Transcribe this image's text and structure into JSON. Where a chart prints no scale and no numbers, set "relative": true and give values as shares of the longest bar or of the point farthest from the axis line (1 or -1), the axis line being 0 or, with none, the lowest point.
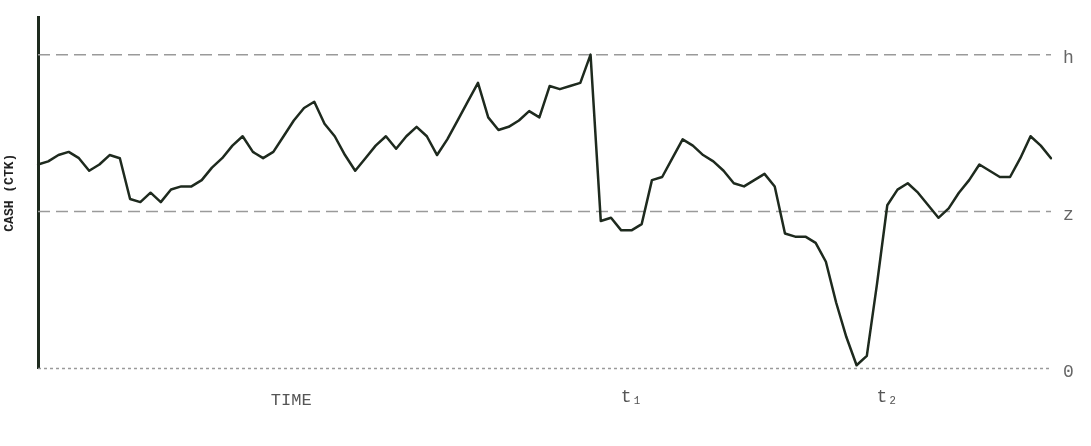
{
  "chart_data": {
    "type": "line",
    "relative": true,
    "xlabel": "TIME",
    "ylabel": "CASH (CTK)",
    "categories": [
      null,
      null,
      null,
      null,
      null,
      null,
      null,
      null,
      null,
      null,
      null,
      null,
      null,
      null,
      null,
      null,
      null,
      null,
      null,
      null,
      null,
      null,
      null,
      null,
      null,
      null,
      null,
      null,
      null,
      null,
      null,
      null,
      null,
      null,
      null,
      null,
      null,
      null,
      null,
      null,
      null,
      null,
      null,
      null,
      null,
      null,
      null,
      null,
      null,
      null,
      null,
      null,
      null,
      null,
      null,
      null,
      null,
      null,
      "t₁",
      null,
      null,
      null,
      null,
      null,
      null,
      null,
      null,
      null,
      null,
      null,
      null,
      null,
      null,
      null,
      null,
      null,
      null,
      null,
      null,
      null,
      null,
      null,
      null,
      "t₂",
      null,
      null,
      null,
      null,
      null,
      null,
      null,
      null,
      null,
      null,
      null,
      null,
      null,
      null,
      null,
      null
    ],
    "series": [
      {
        "color": "#1e2a1e",
        "values": [
          0.65,
          0.66,
          0.68,
          0.69,
          0.67,
          0.63,
          0.65,
          0.68,
          0.67,
          0.54,
          0.53,
          0.56,
          0.53,
          0.57,
          0.58,
          0.58,
          0.6,
          0.64,
          0.67,
          0.71,
          0.74,
          0.69,
          0.67,
          0.69,
          0.74,
          0.79,
          0.83,
          0.85,
          0.78,
          0.74,
          0.68,
          0.63,
          0.67,
          0.71,
          0.74,
          0.7,
          0.74,
          0.77,
          0.74,
          0.68,
          0.73,
          0.79,
          0.85,
          0.91,
          0.8,
          0.76,
          0.77,
          0.79,
          0.82,
          0.8,
          0.9,
          0.89,
          0.9,
          0.91,
          1.0,
          0.47,
          0.48,
          0.44,
          0.44,
          0.46,
          0.6,
          0.61,
          0.67,
          0.73,
          0.71,
          0.68,
          0.66,
          0.63,
          0.59,
          0.58,
          0.6,
          0.62,
          0.58,
          0.43,
          0.42,
          0.42,
          0.4,
          0.34,
          0.21,
          0.1,
          0.01,
          0.04,
          0.27,
          0.52,
          0.57,
          0.59,
          0.56,
          0.52,
          0.48,
          0.51,
          0.56,
          0.6,
          0.65,
          0.63,
          0.61,
          0.61,
          0.67,
          0.74,
          0.71,
          0.67
        ]
      }
    ],
    "ref_lines": [
      {
        "axis": "y",
        "value": 1.0,
        "label": "h",
        "color": "#9a9a9a",
        "line_style": "dashed"
      },
      {
        "axis": "y",
        "value": 0.5,
        "label": "z",
        "color": "#9a9a9a",
        "line_style": "dashed"
      },
      {
        "axis": "y",
        "value": 0,
        "label": "0",
        "color": "#9a9a9a",
        "line_style": "dotted"
      }
    ],
    "grid": false,
    "legend": false,
    "marker": "none",
    "line_style": "solid"
  }
}
